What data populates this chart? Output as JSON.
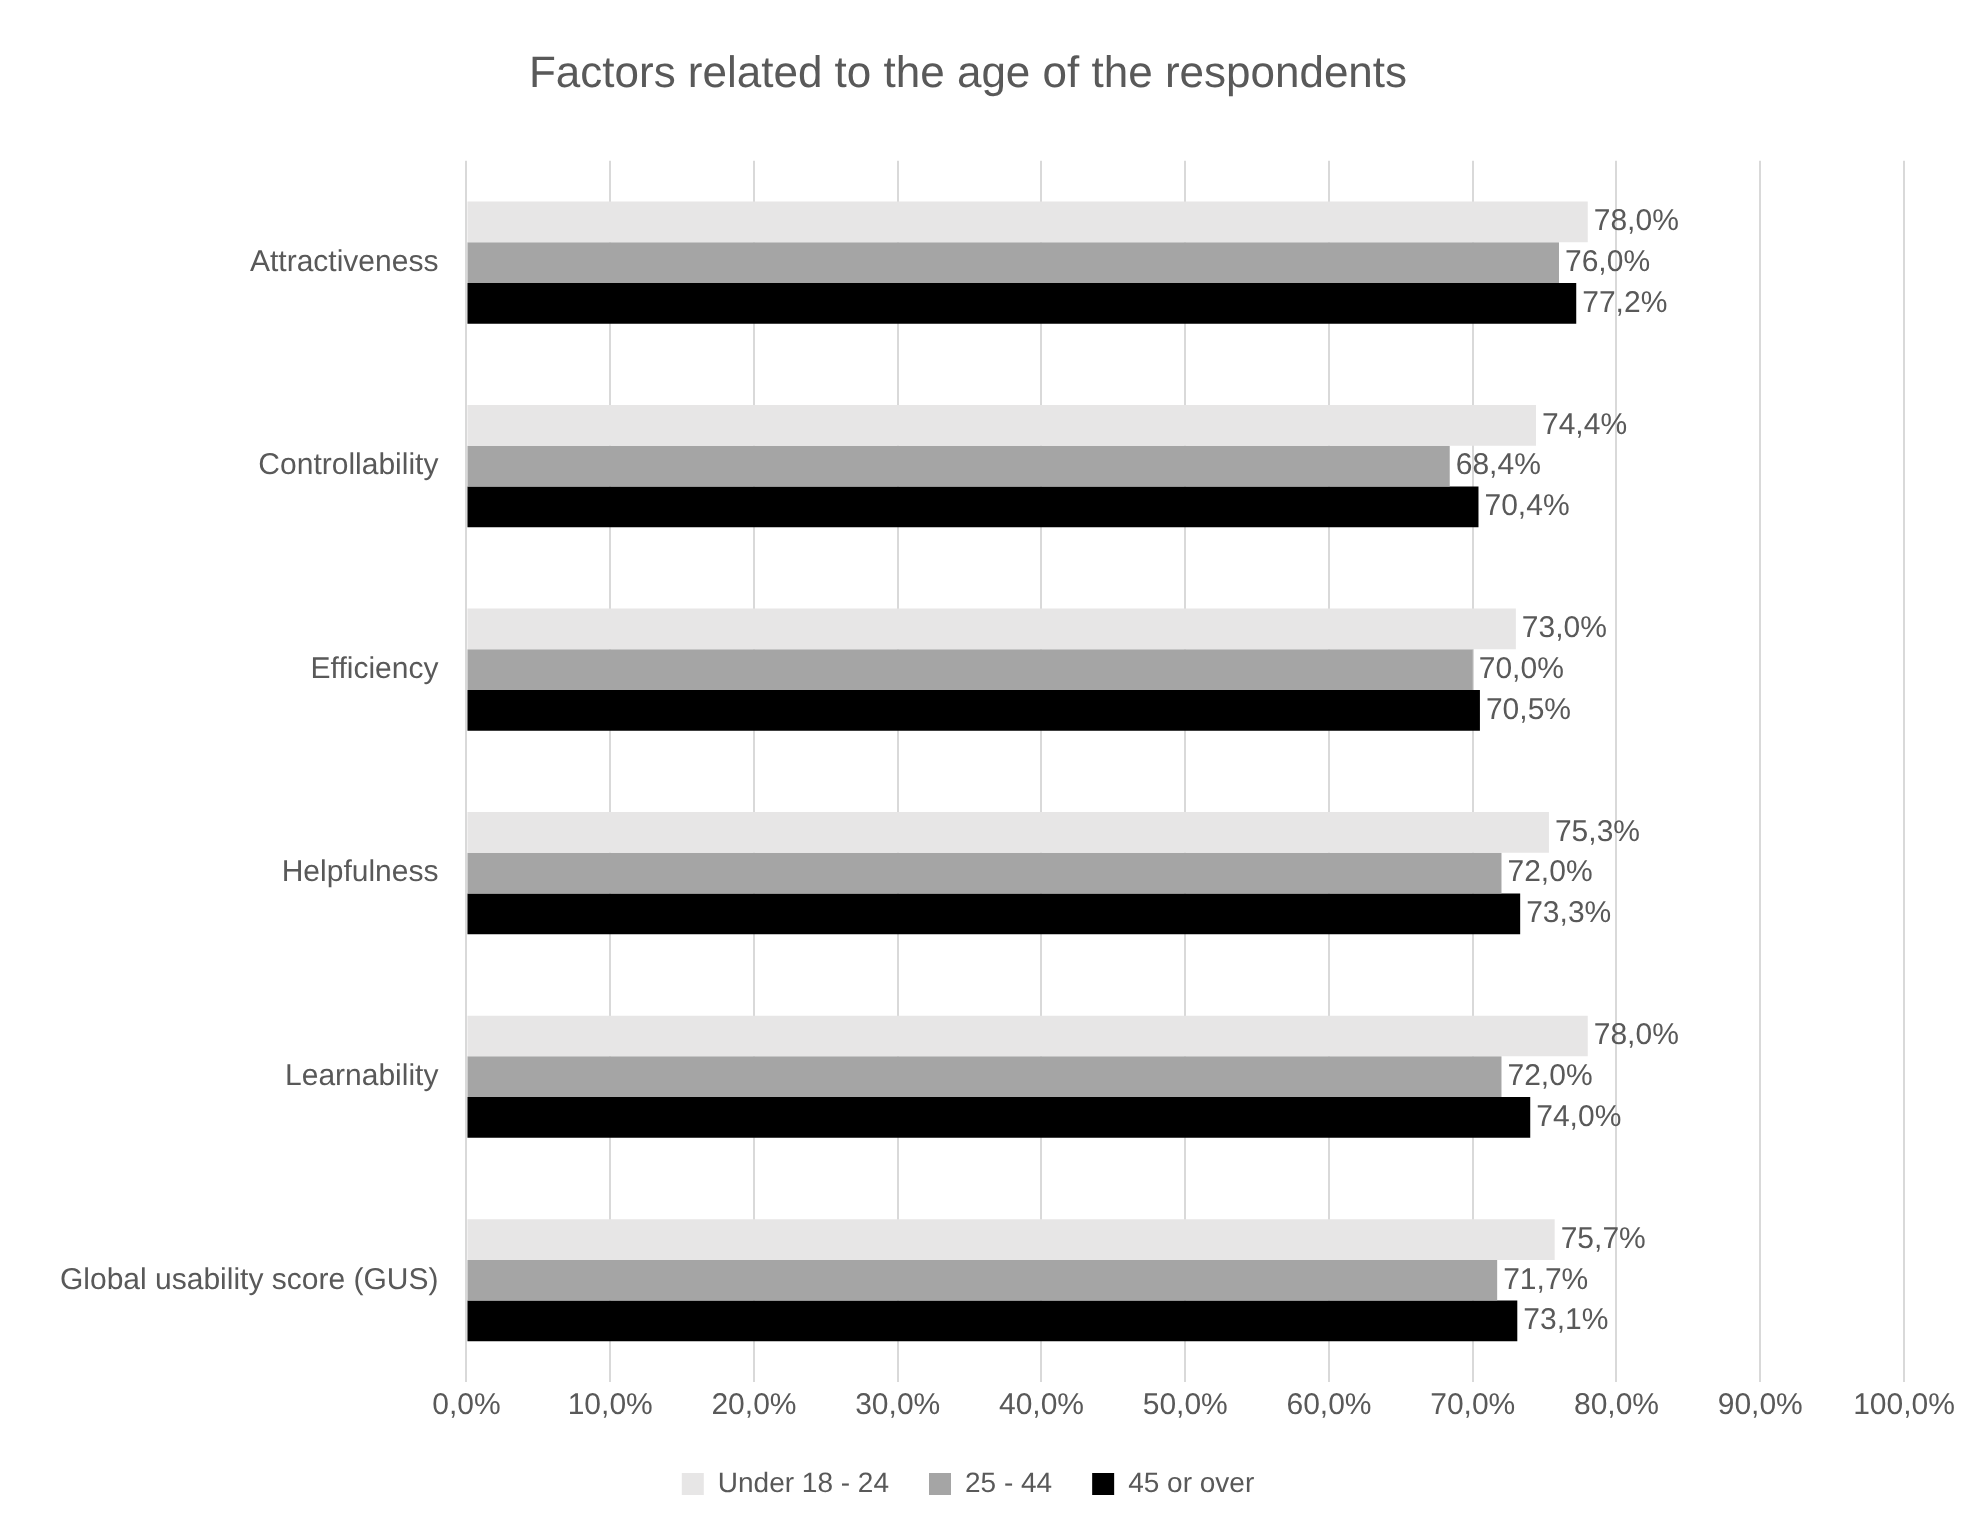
{
  "chart_data": {
    "type": "bar",
    "orientation": "horizontal",
    "title": "Factors related to the age of the respondents",
    "categories": [
      "Attractiveness",
      "Controllability",
      "Efficiency",
      "Helpfulness",
      "Learnability",
      "Global usability score (GUS)"
    ],
    "series": [
      {
        "name": "Under 18 - 24",
        "color": "#e7e6e6",
        "values": [
          78.0,
          74.4,
          73.0,
          75.3,
          78.0,
          75.7
        ],
        "value_labels": [
          "78,0%",
          "74,4%",
          "73,0%",
          "75,3%",
          "78,0%",
          "75,7%"
        ]
      },
      {
        "name": "25 - 44",
        "color": "#a5a5a5",
        "values": [
          76.0,
          68.4,
          70.0,
          72.0,
          72.0,
          71.7
        ],
        "value_labels": [
          "76,0%",
          "68,4%",
          "70,0%",
          "72,0%",
          "72,0%",
          "71,7%"
        ]
      },
      {
        "name": "45 or over",
        "color": "#000000",
        "values": [
          77.2,
          70.4,
          70.5,
          73.3,
          74.0,
          73.1
        ],
        "value_labels": [
          "77,2%",
          "70,4%",
          "70,5%",
          "73,3%",
          "74,0%",
          "73,1%"
        ]
      }
    ],
    "xlim": [
      0,
      100
    ],
    "xticks": [
      {
        "value": 0,
        "label": "0,0%"
      },
      {
        "value": 10,
        "label": "10,0%"
      },
      {
        "value": 20,
        "label": "20,0%"
      },
      {
        "value": 30,
        "label": "30,0%"
      },
      {
        "value": 40,
        "label": "40,0%"
      },
      {
        "value": 50,
        "label": "50,0%"
      },
      {
        "value": 60,
        "label": "60,0%"
      },
      {
        "value": 70,
        "label": "70,0%"
      },
      {
        "value": 80,
        "label": "80,0%"
      },
      {
        "value": 90,
        "label": "90,0%"
      },
      {
        "value": 100,
        "label": "100,0%"
      }
    ],
    "grid": "x",
    "legend": "bottom"
  }
}
